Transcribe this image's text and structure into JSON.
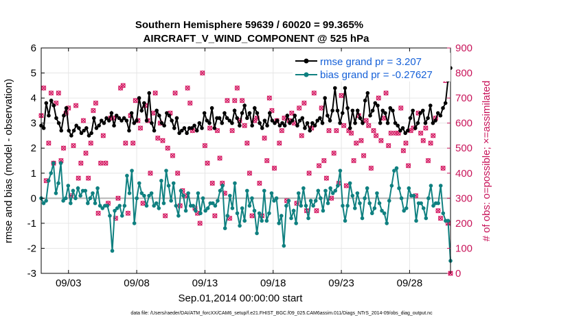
{
  "chart_data": {
    "type": "line",
    "title_line1": "Southern Hemisphere 59639 / 60020 = 99.365%",
    "title_line2": "AIRCRAFT_V_WIND_COMPONENT @ 525 hPa",
    "ylabel_left": "rmse and bias (model - observation)",
    "ylabel_right": "# of obs: o=possible; ×=assimilated",
    "xlabel": "Sep.01,2014 00:00:00 start",
    "footer": "data file: /Users/raeder/DAI/ATM_forcXX/CAM6_setup/f.e21.FHIST_BGC.f09_025.CAM6assim.011/Diags_NTrS_2014-09/obs_diag_output.nc",
    "xlim": [
      1,
      31
    ],
    "ylim_left": [
      -3,
      6
    ],
    "ylim_right": [
      0,
      900
    ],
    "x_ticks": [
      3,
      8,
      13,
      18,
      23,
      28
    ],
    "x_tick_labels": [
      "09/03",
      "09/08",
      "09/13",
      "09/18",
      "09/23",
      "09/28"
    ],
    "y_ticks_left": [
      "-3",
      "-2",
      "-1",
      "0",
      "1",
      "2",
      "3",
      "4",
      "5",
      "6"
    ],
    "y_ticks_right": [
      "0",
      "100",
      "200",
      "300",
      "400",
      "500",
      "600",
      "700",
      "800",
      "900"
    ],
    "grid": true,
    "legend_position": "top-right",
    "colors": {
      "rmse": "#000000",
      "bias": "#0f8080",
      "obs": "#d41660",
      "zero_line": "#b4b4b4",
      "legend_text": "#1560d8"
    },
    "series": [
      {
        "name": "rmse grand pr = 3.207",
        "axis": "left",
        "values": [
          2.9,
          2.8,
          3.8,
          3.3,
          3.9,
          3.7,
          3.2,
          3.0,
          2.7,
          3.3,
          3.6,
          2.7,
          2.5,
          2.7,
          2.9,
          2.8,
          2.6,
          2.7,
          2.8,
          2.5,
          2.6,
          3.2,
          2.8,
          2.9,
          3.1,
          3.0,
          3.2,
          3.1,
          3.4,
          2.9,
          3.3,
          3.2,
          3.1,
          3.2,
          3.1,
          2.7,
          3.4,
          3.0,
          3.1,
          4.0,
          3.5,
          3.8,
          3.1,
          4.2,
          3.0,
          2.7,
          3.5,
          3.3,
          3.0,
          2.9,
          3.4,
          3.3,
          3.1,
          2.8,
          3.2,
          2.6,
          2.7,
          2.8,
          2.6,
          2.8,
          2.8,
          2.9,
          2.7,
          3.0,
          2.8,
          3.4,
          3.1,
          3.0,
          3.6,
          2.8,
          3.2,
          3.2,
          3.0,
          3.4,
          3.2,
          3.1,
          3.0,
          3.5,
          3.2,
          2.9,
          3.4,
          3.7,
          3.2,
          3.4,
          2.9,
          3.6,
          3.4,
          3.0,
          2.8,
          3.1,
          2.9,
          3.4,
          3.1,
          3.0,
          3.1,
          2.9,
          3.0,
          2.9,
          3.3,
          3.0,
          3.1,
          3.3,
          2.9,
          3.1,
          3.2,
          2.8,
          3.0,
          2.7,
          3.0,
          2.9,
          3.1,
          3.2,
          3.0,
          4.0,
          3.3,
          3.1,
          3.5,
          4.4,
          3.5,
          3.0,
          3.4,
          4.4,
          3.6,
          2.8,
          3.5,
          3.0,
          3.5,
          3.2,
          3.0,
          3.9,
          4.2,
          3.3,
          3.5,
          3.8,
          3.7,
          3.0,
          3.5,
          3.4,
          3.0,
          3.6,
          3.5,
          3.0,
          2.9,
          2.7,
          2.8,
          2.6,
          2.7,
          3.2,
          3.5,
          2.8,
          3.0,
          3.4,
          3.5,
          3.0,
          3.2,
          3.7,
          3.0,
          3.1,
          3.4,
          3.3,
          3.6,
          3.8,
          4.7,
          5.2
        ]
      },
      {
        "name": "bias grand pr = -0.27627",
        "axis": "left",
        "values": [
          0.0,
          -0.2,
          -0.1,
          0.7,
          1.0,
          1.4,
          0.2,
          0.6,
          1.4,
          -0.1,
          0.0,
          0.5,
          -0.2,
          0.3,
          0.0,
          0.4,
          0.1,
          0.3,
          0.3,
          -0.2,
          0.0,
          0.2,
          -0.2,
          0.4,
          -0.3,
          -0.4,
          -0.3,
          -0.3,
          -0.7,
          -2.1,
          -0.5,
          -0.4,
          -0.3,
          -0.7,
          -0.3,
          0.9,
          0.2,
          1.1,
          -1.0,
          0.0,
          0.6,
          0.2,
          0.1,
          -0.3,
          0.1,
          0.2,
          -0.3,
          -0.2,
          -0.4,
          0.7,
          -0.2,
          1.1,
          0.5,
          -0.1,
          0.6,
          -0.3,
          -0.7,
          0.3,
          0.1,
          -0.5,
          0.2,
          -0.3,
          -0.3,
          -0.5,
          0.2,
          -0.6,
          0.0,
          -0.5,
          -0.4,
          -0.2,
          -0.2,
          -0.3,
          -0.1,
          0.3,
          0.5,
          -1.2,
          -0.7,
          0.1,
          -0.4,
          0.6,
          -0.6,
          -1.1,
          -0.4,
          -0.9,
          0.3,
          -0.3,
          0.0,
          -0.5,
          -1.4,
          -0.6,
          -0.9,
          0.3,
          -0.9,
          -0.6,
          0.2,
          -0.1,
          0.0,
          -1.0,
          -0.7,
          -1.9,
          -0.3,
          -0.1,
          -0.8,
          -0.5,
          -1.0,
          0.2,
          -0.3,
          0.4,
          -0.3,
          -0.8,
          -0.1,
          -0.3,
          -0.1,
          0.3,
          0.0,
          -0.5,
          0.3,
          -0.2,
          0.4,
          0.2,
          0.3,
          0.5,
          1.1,
          -0.3,
          -0.9,
          -0.3,
          0.6,
          0.1,
          -0.4,
          0.2,
          -0.2,
          -0.8,
          0.0,
          0.4,
          -0.2,
          -0.6,
          -0.4,
          0.2,
          -0.2,
          -0.5,
          -0.6,
          -1.0,
          -0.1,
          0.5,
          1.1,
          1.2,
          0.4,
          0.0,
          -0.5,
          -0.4,
          0.4,
          0.1,
          0.1,
          -0.9,
          -0.2,
          -0.2,
          -0.4,
          -0.8,
          0.0,
          0.5,
          -0.3,
          -0.2,
          -0.2,
          0.5,
          -0.6,
          -0.9,
          -0.9,
          -2.5
        ]
      }
    ],
    "obs_possible_right_axis": [
      630,
      740,
      370,
      520,
      720,
      440,
      680,
      720,
      450,
      500,
      640,
      660,
      310,
      510,
      670,
      380,
      440,
      610,
      480,
      380,
      520,
      650,
      680,
      240,
      440,
      550,
      440,
      280,
      620,
      620,
      220,
      300,
      740,
      750,
      520,
      240,
      630,
      520,
      690,
      610,
      580,
      280,
      670,
      610,
      400,
      640,
      720,
      540,
      600,
      530,
      230,
      500,
      640,
      470,
      720,
      400,
      270,
      330,
      310,
      740,
      680,
      570,
      260,
      240,
      200,
      800,
      510,
      440,
      580,
      360,
      230,
      570,
      460,
      360,
      320,
      690,
      220,
      570,
      690,
      740,
      610,
      690,
      590,
      520,
      400,
      230,
      610,
      620,
      360,
      230,
      540,
      450,
      700,
      650,
      420,
      610,
      520,
      570,
      620,
      290,
      610,
      640,
      600,
      280,
      660,
      550,
      680,
      250,
      400,
      580,
      720,
      250,
      430,
      660,
      450,
      380,
      570,
      300,
      480,
      570,
      360,
      710,
      590,
      350,
      570,
      560,
      450,
      520,
      630,
      530,
      470,
      610,
      590,
      420,
      570,
      550,
      700,
      530,
      620,
      720,
      510,
      560,
      810,
      560,
      560,
      660,
      490,
      520,
      430,
      570,
      580,
      310,
      640,
      560,
      530,
      580,
      450,
      520,
      550,
      620,
      250,
      220,
      420,
      770,
      200,
      0
    ]
  }
}
